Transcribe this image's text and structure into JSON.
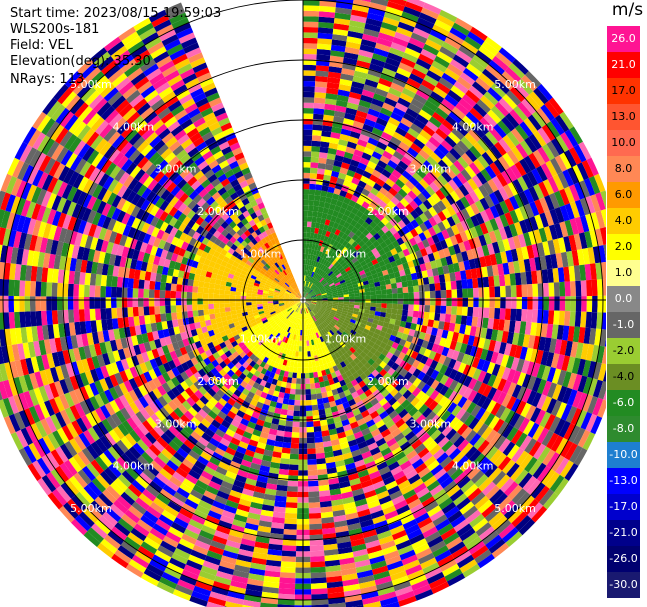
{
  "header": {
    "start_time": "Start time: 2023/08/15 19:59:03",
    "instrument": "WLS200s-181",
    "field": "Field: VEL",
    "elevation": "Elevation(deg): 35.30",
    "nrays": "NRays: 113"
  },
  "chart_data": {
    "type": "ppi_scan",
    "field": "VEL",
    "units": "m/s",
    "range_rings_km": [
      1,
      2,
      3,
      4,
      5
    ],
    "range_ring_labels": [
      "1.00km",
      "2.00km",
      "3.00km",
      "4.00km",
      "5.00km"
    ],
    "scan_gap_azimuth_deg": [
      336,
      360
    ],
    "colorbar": {
      "title": "m/s",
      "ticks": [
        "26.0",
        "21.0",
        "17.0",
        "13.0",
        "10.0",
        "8.0",
        "6.0",
        "4.0",
        "2.0",
        "1.0",
        "0.0",
        "-1.0",
        "-2.0",
        "-4.0",
        "-6.0",
        "-8.0",
        "-10.0",
        "-13.0",
        "-17.0",
        "-21.0",
        "-26.0",
        "-30.0"
      ],
      "colors": [
        "#ff1493",
        "#ff0000",
        "#ff3300",
        "#ff5530",
        "#ff6a50",
        "#ff8855",
        "#ff9a00",
        "#ffcc00",
        "#ffff00",
        "#ffff90",
        "#888888",
        "#666666",
        "#9acd32",
        "#6b8e23",
        "#228b22",
        "#2e8b2e",
        "#1e7fd0",
        "#0000ff",
        "#0000cd",
        "#00008b",
        "#000070",
        "#191970"
      ]
    },
    "pattern": [
      {
        "azimuth_deg": [
          300,
          336
        ],
        "max_range_km": 1.2,
        "color": "#ff9a00"
      },
      {
        "azimuth_deg": [
          240,
          300
        ],
        "max_range_km": 1.8,
        "color": "#ffcc00"
      },
      {
        "azimuth_deg": [
          0,
          90
        ],
        "max_range_km": 1.8,
        "color": "#228b22"
      },
      {
        "azimuth_deg": [
          90,
          150
        ],
        "max_range_km": 1.6,
        "color": "#6b8e23"
      },
      {
        "azimuth_deg": [
          150,
          240
        ],
        "max_range_km": 1.2,
        "color": "#ffff00"
      }
    ],
    "background_noise_colors": [
      "#ff1493",
      "#ff0000",
      "#0000ff",
      "#ffff00",
      "#228b22",
      "#000080",
      "#ff69b4",
      "#9acd32",
      "#ff8855",
      "#00008b",
      "#ffcc00",
      "#666666"
    ]
  }
}
